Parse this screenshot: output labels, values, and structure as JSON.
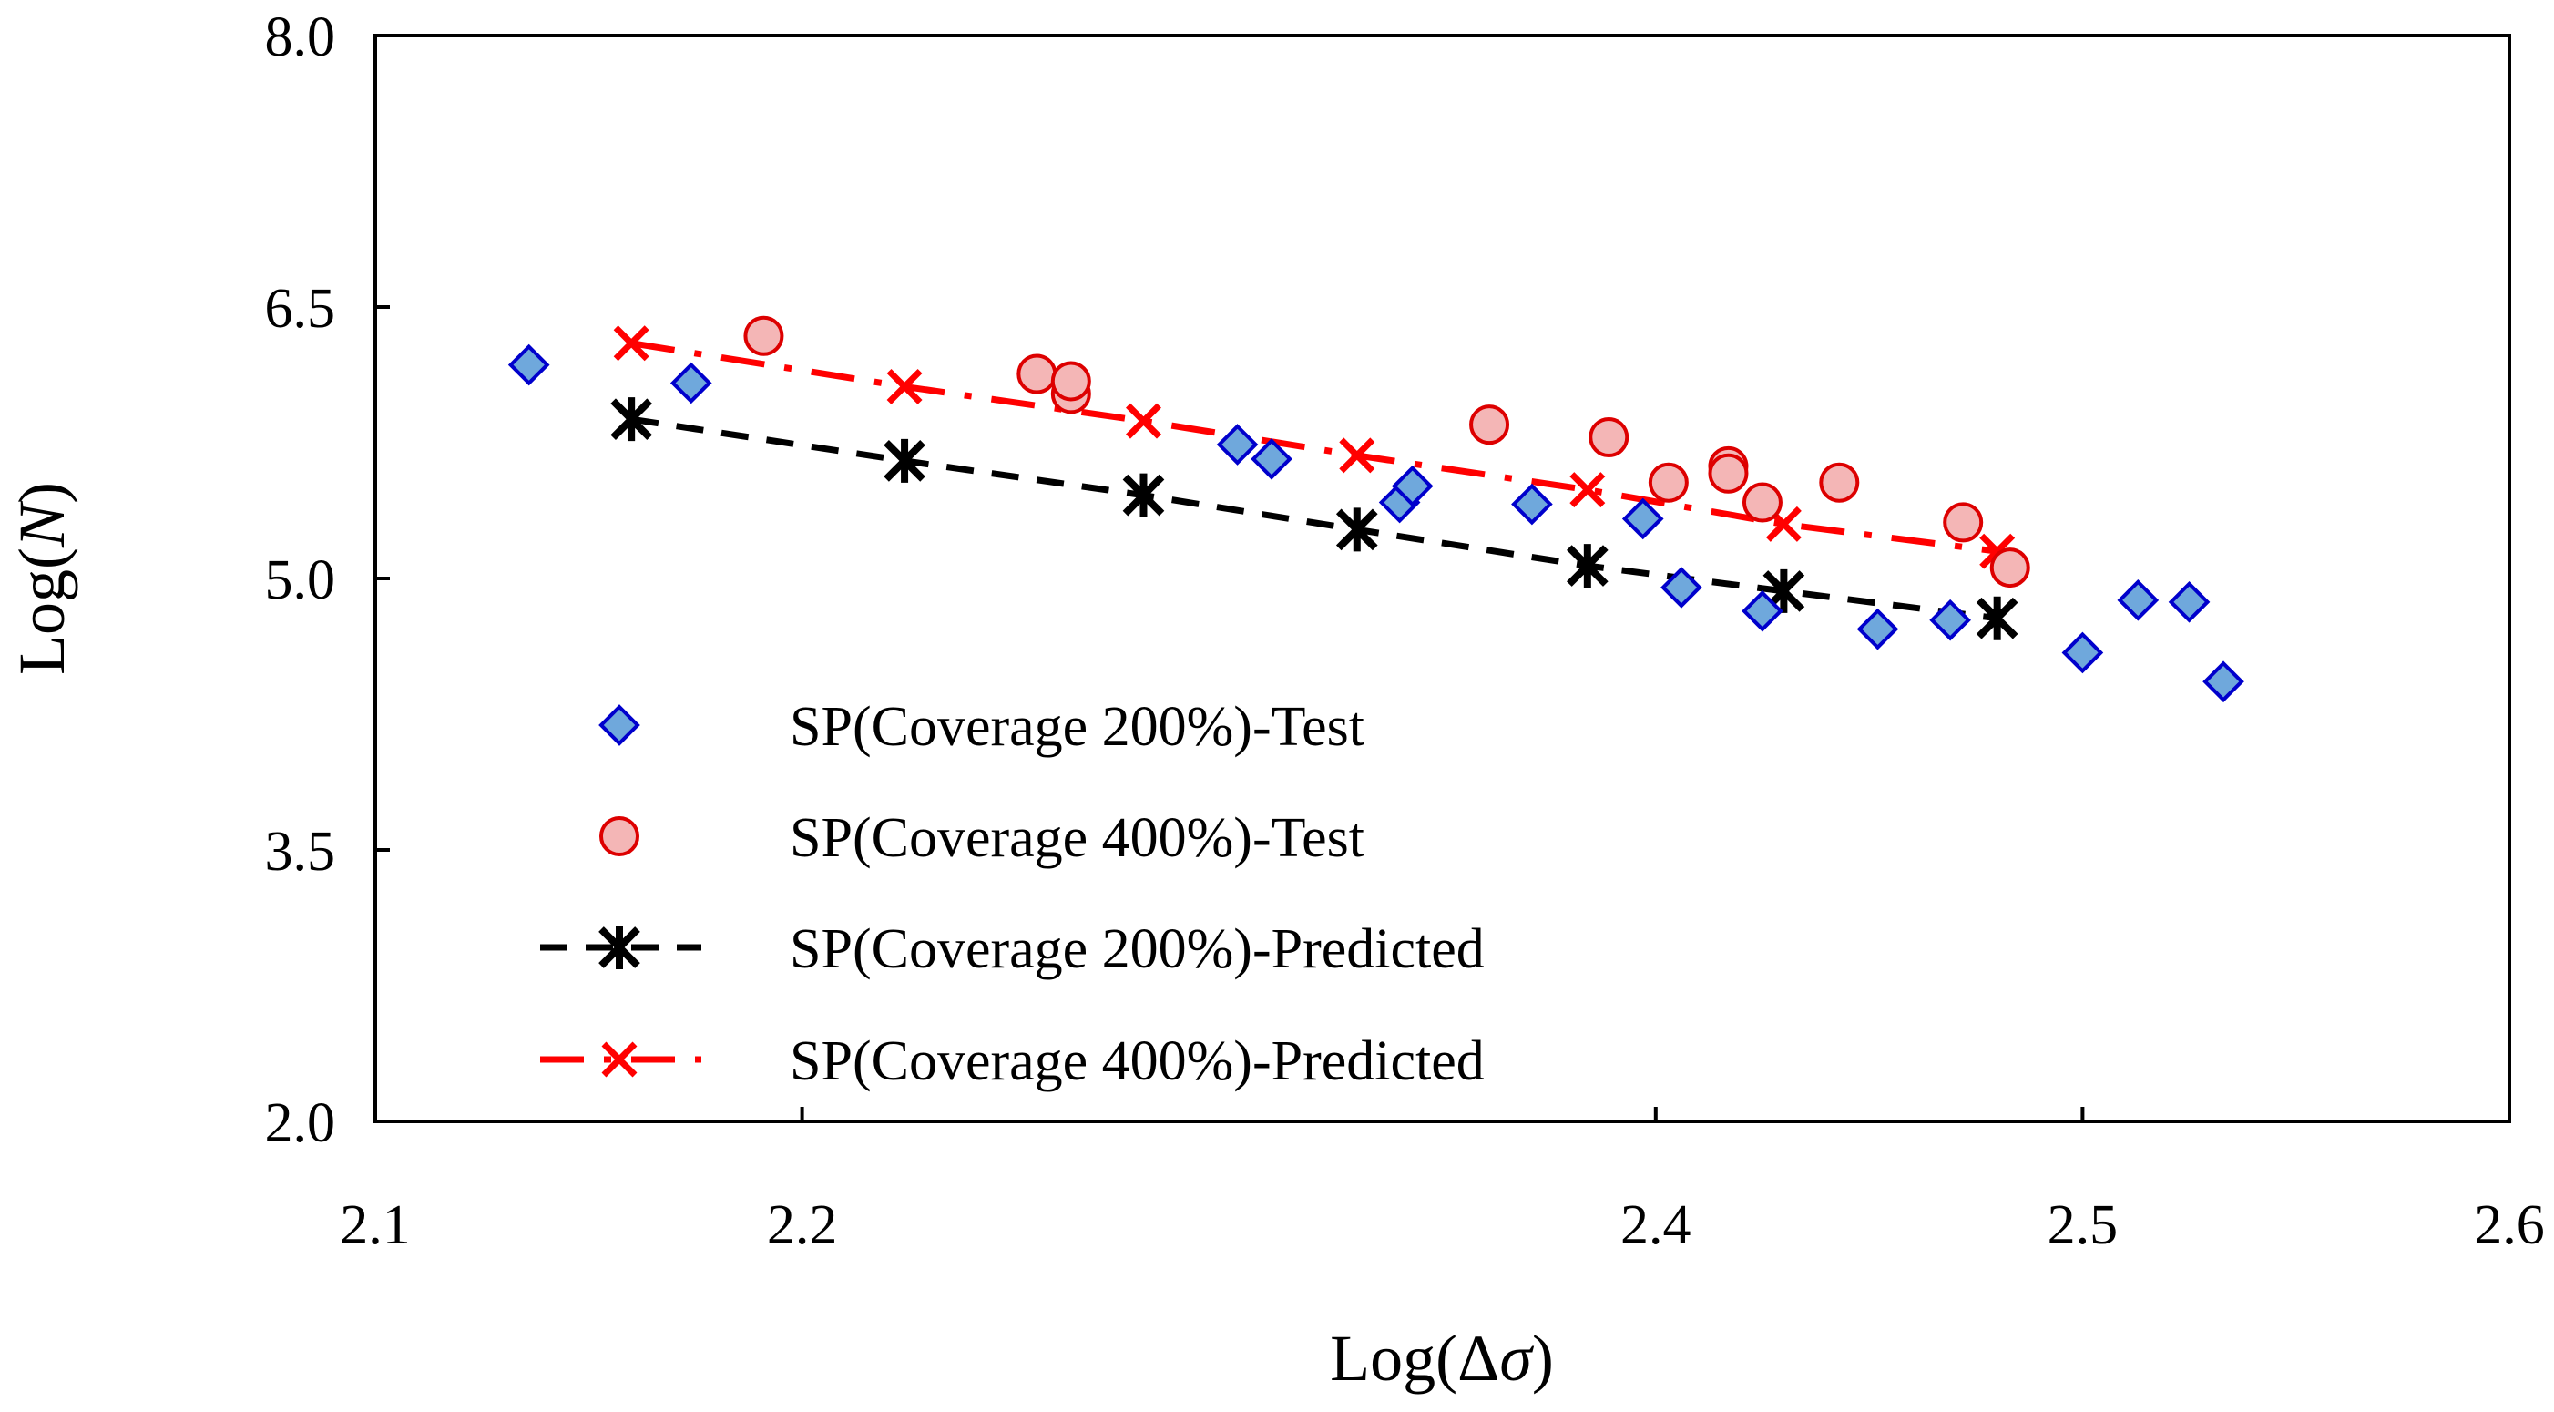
{
  "chart_data": {
    "type": "scatter",
    "title": "",
    "xlabel_prefix": "Log(Δ",
    "xlabel_var": "σ",
    "xlabel_suffix": ")",
    "ylabel_prefix": "Log(",
    "ylabel_var": "N",
    "ylabel_suffix": ")",
    "xlim": [
      2.1,
      2.6
    ],
    "ylim": [
      2.0,
      8.0
    ],
    "x_ticks": [
      2.1,
      2.2,
      2.4,
      2.5,
      2.6
    ],
    "x_tick_labels": [
      "2.1",
      "2.2",
      "2.4",
      "2.5",
      "2.6"
    ],
    "y_ticks": [
      2.0,
      3.5,
      5.0,
      6.5,
      8.0
    ],
    "y_tick_labels": [
      "2.0",
      "3.5",
      "5.0",
      "6.5",
      "8.0"
    ],
    "grid": false,
    "legend_position": "lower-left",
    "series": [
      {
        "name": "SP(Coverage 200%)-Test",
        "kind": "scatter",
        "marker": "diamond",
        "color": "#6fa8dc",
        "edge_color": "#0000cc",
        "points": [
          {
            "x": 2.136,
            "y": 6.18
          },
          {
            "x": 2.174,
            "y": 6.08
          },
          {
            "x": 2.302,
            "y": 5.74
          },
          {
            "x": 2.31,
            "y": 5.66
          },
          {
            "x": 2.34,
            "y": 5.42
          },
          {
            "x": 2.343,
            "y": 5.51
          },
          {
            "x": 2.371,
            "y": 5.41
          },
          {
            "x": 2.397,
            "y": 5.33
          },
          {
            "x": 2.406,
            "y": 4.95
          },
          {
            "x": 2.425,
            "y": 4.82
          },
          {
            "x": 2.452,
            "y": 4.72
          },
          {
            "x": 2.469,
            "y": 4.77
          },
          {
            "x": 2.5,
            "y": 4.59
          },
          {
            "x": 2.513,
            "y": 4.88
          },
          {
            "x": 2.525,
            "y": 4.87
          },
          {
            "x": 2.533,
            "y": 4.43
          }
        ]
      },
      {
        "name": "SP(Coverage 400%)-Test",
        "kind": "scatter",
        "marker": "circle",
        "color": "#f4b6b6",
        "edge_color": "#dd0000",
        "points": [
          {
            "x": 2.191,
            "y": 6.34
          },
          {
            "x": 2.255,
            "y": 6.13
          },
          {
            "x": 2.263,
            "y": 6.02
          },
          {
            "x": 2.263,
            "y": 6.09
          },
          {
            "x": 2.361,
            "y": 5.85
          },
          {
            "x": 2.389,
            "y": 5.78
          },
          {
            "x": 2.403,
            "y": 5.53
          },
          {
            "x": 2.417,
            "y": 5.62
          },
          {
            "x": 2.417,
            "y": 5.58
          },
          {
            "x": 2.425,
            "y": 5.42
          },
          {
            "x": 2.443,
            "y": 5.53
          },
          {
            "x": 2.472,
            "y": 5.31
          },
          {
            "x": 2.483,
            "y": 5.06
          }
        ]
      },
      {
        "name": "SP(Coverage 200%)-Predicted",
        "kind": "line",
        "marker": "asterisk",
        "color": "#000000",
        "dash": "dash",
        "points": [
          {
            "x": 2.16,
            "y": 5.88
          },
          {
            "x": 2.224,
            "y": 5.65
          },
          {
            "x": 2.28,
            "y": 5.46
          },
          {
            "x": 2.33,
            "y": 5.27
          },
          {
            "x": 2.384,
            "y": 5.07
          },
          {
            "x": 2.43,
            "y": 4.93
          },
          {
            "x": 2.48,
            "y": 4.78
          }
        ]
      },
      {
        "name": "SP(Coverage 400%)-Predicted",
        "kind": "line",
        "marker": "x",
        "color": "#ff0000",
        "dash": "dashdot",
        "points": [
          {
            "x": 2.16,
            "y": 6.3
          },
          {
            "x": 2.224,
            "y": 6.06
          },
          {
            "x": 2.28,
            "y": 5.87
          },
          {
            "x": 2.33,
            "y": 5.68
          },
          {
            "x": 2.384,
            "y": 5.49
          },
          {
            "x": 2.43,
            "y": 5.3
          },
          {
            "x": 2.48,
            "y": 5.15
          }
        ]
      }
    ]
  }
}
